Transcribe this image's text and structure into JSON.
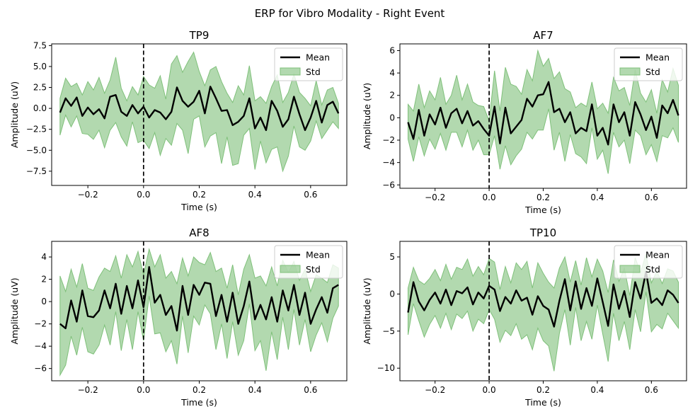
{
  "figure_title": "ERP for Vibro Modality - Right Event",
  "legend": {
    "mean_label": "Mean",
    "std_label": "Std",
    "placement": "upper right"
  },
  "colors": {
    "mean": "#000000",
    "std_fill": "#7fc07a",
    "event_line": "#000000"
  },
  "chart_data": [
    {
      "type": "line",
      "title": "TP9",
      "xlabel": "Time (s)",
      "ylabel": "Amplitude (uV)",
      "xlim": [
        -0.33,
        0.73
      ],
      "ylim": [
        -9.2,
        7.7
      ],
      "xticks": [
        -0.2,
        0.0,
        0.2,
        0.4,
        0.6
      ],
      "xtick_labels": [
        "−0.2",
        "0.0",
        "0.2",
        "0.4",
        "0.6"
      ],
      "yticks": [
        -7.5,
        -5.0,
        -2.5,
        0.0,
        2.5,
        5.0,
        7.5
      ],
      "ytick_labels": [
        "−7.5",
        "−5.0",
        "−2.5",
        "0.0",
        "2.5",
        "5.0",
        "7.5"
      ],
      "event_line_x": 0.0,
      "series": [
        {
          "name": "Mean",
          "x": [
            -0.3,
            -0.28,
            -0.26,
            -0.24,
            -0.22,
            -0.2,
            -0.18,
            -0.16,
            -0.14,
            -0.12,
            -0.1,
            -0.08,
            -0.06,
            -0.04,
            -0.02,
            0.0,
            0.02,
            0.04,
            0.06,
            0.08,
            0.1,
            0.12,
            0.14,
            0.16,
            0.18,
            0.2,
            0.22,
            0.24,
            0.26,
            0.28,
            0.3,
            0.32,
            0.34,
            0.36,
            0.38,
            0.4,
            0.42,
            0.44,
            0.46,
            0.48,
            0.5,
            0.52,
            0.54,
            0.56,
            0.58,
            0.6,
            0.62,
            0.64,
            0.66,
            0.68,
            0.7
          ],
          "y": [
            -0.5,
            1.2,
            0.3,
            1.3,
            -0.9,
            0.1,
            -0.7,
            -0.1,
            -1.2,
            1.4,
            1.6,
            -0.4,
            -0.9,
            0.4,
            -0.6,
            0.2,
            -1.1,
            -0.2,
            -0.5,
            -1.3,
            -0.4,
            2.5,
            0.9,
            0.2,
            0.8,
            2.1,
            -0.6,
            2.6,
            1.2,
            -0.3,
            -0.2,
            -2.0,
            -1.6,
            -0.9,
            1.2,
            -2.4,
            -1.1,
            -2.6,
            0.9,
            -0.3,
            -2.2,
            -1.3,
            1.4,
            -0.7,
            -2.6,
            -1.1,
            0.9,
            -1.7,
            0.4,
            0.8,
            -0.6
          ]
        },
        {
          "name": "Std",
          "upper": [
            1.2,
            3.6,
            2.6,
            3.0,
            1.6,
            3.2,
            2.2,
            3.7,
            1.8,
            3.4,
            6.1,
            2.4,
            0.9,
            2.6,
            1.6,
            3.8,
            2.8,
            2.4,
            3.9,
            1.1,
            5.3,
            6.3,
            4.3,
            5.6,
            6.7,
            4.4,
            2.7,
            4.6,
            5.0,
            3.2,
            1.8,
            0.7,
            2.7,
            1.6,
            5.1,
            0.9,
            1.4,
            0.6,
            2.6,
            4.0,
            0.7,
            1.9,
            4.1,
            1.9,
            1.2,
            0.3,
            3.3,
            0.4,
            2.2,
            2.5,
            0.6
          ],
          "lower": [
            -3.2,
            -0.8,
            -2.2,
            -0.9,
            -3.0,
            -3.1,
            -3.7,
            -2.6,
            -4.7,
            -2.6,
            -1.7,
            -3.4,
            -4.5,
            -1.6,
            -4.1,
            -3.8,
            -4.8,
            -2.9,
            -5.6,
            -3.6,
            -4.4,
            -1.8,
            -2.6,
            -5.4,
            -1.3,
            -0.9,
            -4.6,
            -3.3,
            -2.9,
            -6.6,
            -3.4,
            -6.8,
            -6.6,
            -3.2,
            -2.4,
            -7.3,
            -3.9,
            -6.5,
            -4.9,
            -4.6,
            -7.5,
            -5.7,
            -2.1,
            -4.6,
            -5.0,
            -3.9,
            -1.5,
            -3.6,
            -2.6,
            -1.6,
            -2.4
          ]
        }
      ]
    },
    {
      "type": "line",
      "title": "AF7",
      "xlabel": "Time (s)",
      "ylabel": "Amplitude (uV)",
      "xlim": [
        -0.33,
        0.73
      ],
      "ylim": [
        -6.3,
        6.6
      ],
      "xticks": [
        -0.2,
        0.0,
        0.2,
        0.4,
        0.6
      ],
      "xtick_labels": [
        "−0.2",
        "0.0",
        "0.2",
        "0.4",
        "0.6"
      ],
      "yticks": [
        -6,
        -4,
        -2,
        0,
        2,
        4,
        6
      ],
      "ytick_labels": [
        "−6",
        "−4",
        "−2",
        "0",
        "2",
        "4",
        "6"
      ],
      "event_line_x": 0.0,
      "series": [
        {
          "name": "Mean",
          "x": [
            -0.3,
            -0.28,
            -0.26,
            -0.24,
            -0.22,
            -0.2,
            -0.18,
            -0.16,
            -0.14,
            -0.12,
            -0.1,
            -0.08,
            -0.06,
            -0.04,
            -0.02,
            0.0,
            0.02,
            0.04,
            0.06,
            0.08,
            0.1,
            0.12,
            0.14,
            0.16,
            0.18,
            0.2,
            0.22,
            0.24,
            0.26,
            0.28,
            0.3,
            0.32,
            0.34,
            0.36,
            0.38,
            0.4,
            0.42,
            0.44,
            0.46,
            0.48,
            0.5,
            0.52,
            0.54,
            0.56,
            0.58,
            0.6,
            0.62,
            0.64,
            0.66,
            0.68,
            0.7
          ],
          "y": [
            -0.4,
            -1.9,
            0.7,
            -1.6,
            0.3,
            -0.6,
            0.9,
            -0.9,
            0.4,
            0.8,
            -0.5,
            0.6,
            -0.7,
            -0.3,
            -1.0,
            -1.6,
            1.0,
            -2.3,
            0.9,
            -1.4,
            -0.8,
            -0.2,
            1.7,
            1.0,
            2.0,
            2.1,
            3.2,
            0.5,
            0.8,
            -0.4,
            0.5,
            -1.4,
            -0.9,
            -1.2,
            1.2,
            -1.6,
            -0.9,
            -2.4,
            1.2,
            -0.4,
            0.5,
            -1.6,
            1.4,
            0.3,
            -1.1,
            0.1,
            -1.8,
            1.1,
            0.4,
            1.6,
            0.2
          ]
        },
        {
          "name": "Std",
          "upper": [
            1.2,
            0.6,
            3.0,
            0.9,
            2.4,
            1.6,
            3.6,
            1.2,
            2.0,
            3.8,
            1.6,
            3.0,
            1.4,
            1.1,
            1.0,
            -0.3,
            4.2,
            0.6,
            4.5,
            3.0,
            2.8,
            2.1,
            4.3,
            3.3,
            6.0,
            4.6,
            5.3,
            3.5,
            4.1,
            2.6,
            2.3,
            0.9,
            1.3,
            1.0,
            3.2,
            0.8,
            1.3,
            0.4,
            3.6,
            2.4,
            2.7,
            1.1,
            4.3,
            2.2,
            1.4,
            2.5,
            0.4,
            3.4,
            2.3,
            4.4,
            2.9
          ]
        },
        {
          "name": "Std-lower",
          "lower": [
            -1.9,
            -3.9,
            -1.7,
            -3.4,
            -1.9,
            -2.8,
            -1.4,
            -2.9,
            -1.3,
            -1.3,
            -2.6,
            -1.1,
            -2.9,
            -2.0,
            -3.3,
            -3.3,
            -1.6,
            -4.6,
            -2.5,
            -4.2,
            -3.4,
            -2.8,
            -1.3,
            -1.9,
            -1.1,
            -1.1,
            0.8,
            -2.9,
            -1.3,
            -3.9,
            -1.5,
            -3.2,
            -3.5,
            -4.1,
            -0.9,
            -3.7,
            -2.9,
            -5.0,
            -1.3,
            -2.6,
            -2.0,
            -4.1,
            -1.1,
            -1.6,
            -3.3,
            -2.4,
            -3.9,
            -1.6,
            -1.8,
            -0.9,
            -2.2
          ]
        }
      ]
    },
    {
      "type": "line",
      "title": "AF8",
      "xlabel": "Time (s)",
      "ylabel": "Amplitude (uV)",
      "xlim": [
        -0.33,
        0.73
      ],
      "ylim": [
        -7.1,
        5.4
      ],
      "xticks": [
        -0.2,
        0.0,
        0.2,
        0.4,
        0.6
      ],
      "xtick_labels": [
        "−0.2",
        "0.0",
        "0.2",
        "0.4",
        "0.6"
      ],
      "yticks": [
        -6,
        -4,
        -2,
        0,
        2,
        4
      ],
      "ytick_labels": [
        "−6",
        "−4",
        "−2",
        "0",
        "2",
        "4"
      ],
      "event_line_x": 0.0,
      "series": [
        {
          "name": "Mean",
          "x": [
            -0.3,
            -0.28,
            -0.26,
            -0.24,
            -0.22,
            -0.2,
            -0.18,
            -0.16,
            -0.14,
            -0.12,
            -0.1,
            -0.08,
            -0.06,
            -0.04,
            -0.02,
            0.0,
            0.02,
            0.04,
            0.06,
            0.08,
            0.1,
            0.12,
            0.14,
            0.16,
            0.18,
            0.2,
            0.22,
            0.24,
            0.26,
            0.28,
            0.3,
            0.32,
            0.34,
            0.36,
            0.38,
            0.4,
            0.42,
            0.44,
            0.46,
            0.48,
            0.5,
            0.52,
            0.54,
            0.56,
            0.58,
            0.6,
            0.62,
            0.64,
            0.66,
            0.68,
            0.7
          ],
          "y": [
            -2.0,
            -2.4,
            0.1,
            -1.8,
            1.0,
            -1.3,
            -1.4,
            -0.8,
            1.0,
            -0.6,
            1.6,
            -1.1,
            1.4,
            -0.6,
            1.9,
            -0.5,
            3.1,
            -0.1,
            0.6,
            -1.2,
            -0.4,
            -2.6,
            1.4,
            -1.2,
            1.5,
            0.6,
            1.7,
            1.6,
            -1.3,
            0.6,
            -1.8,
            0.8,
            -2.0,
            -0.4,
            1.8,
            -1.6,
            -0.3,
            -1.6,
            0.4,
            -1.8,
            1.0,
            -0.8,
            1.5,
            -1.2,
            0.8,
            -2.0,
            -0.7,
            0.4,
            -1.0,
            1.2,
            1.5
          ]
        },
        {
          "name": "Std",
          "upper": [
            2.3,
            0.9,
            2.9,
            1.3,
            3.4,
            1.2,
            1.0,
            2.2,
            3.0,
            2.7,
            4.1,
            2.1,
            4.2,
            3.1,
            4.5,
            2.4,
            4.7,
            3.1,
            4.2,
            2.1,
            2.7,
            1.6,
            3.9,
            2.3,
            4.0,
            3.5,
            3.3,
            4.4,
            2.7,
            3.0,
            1.2,
            3.3,
            0.6,
            2.9,
            4.2,
            2.1,
            2.3,
            1.4,
            3.1,
            1.4,
            3.7,
            2.6,
            3.6,
            1.9,
            2.9,
            0.9,
            2.4,
            2.1,
            1.7,
            3.3,
            3.0
          ]
        },
        {
          "name": "Std-lower",
          "lower": [
            -6.6,
            -5.7,
            -3.1,
            -4.8,
            -2.3,
            -4.5,
            -4.7,
            -3.9,
            -2.1,
            -3.9,
            -0.9,
            -4.4,
            -1.6,
            -4.3,
            -0.9,
            -3.5,
            0.5,
            -2.9,
            -2.8,
            -4.5,
            -3.5,
            -5.6,
            -1.3,
            -4.6,
            -1.3,
            -2.1,
            -0.3,
            -1.1,
            -4.3,
            -2.0,
            -5.1,
            -1.8,
            -4.8,
            -3.5,
            -0.2,
            -4.4,
            -3.5,
            -6.2,
            -2.7,
            -5.2,
            -1.4,
            -4.3,
            -0.7,
            -3.9,
            -1.6,
            -4.5,
            -3.0,
            -1.9,
            -3.6,
            -1.5,
            -0.4
          ]
        }
      ]
    },
    {
      "type": "line",
      "title": "TP10",
      "xlabel": "Time (s)",
      "ylabel": "Amplitude (uV)",
      "xlim": [
        -0.33,
        0.73
      ],
      "ylim": [
        -11.7,
        7.1
      ],
      "xticks": [
        -0.2,
        0.0,
        0.2,
        0.4,
        0.6
      ],
      "xtick_labels": [
        "−0.2",
        "0.0",
        "0.2",
        "0.4",
        "0.6"
      ],
      "yticks": [
        -10,
        -5,
        0,
        5
      ],
      "ytick_labels": [
        "−10",
        "−5",
        "0",
        "5"
      ],
      "event_line_x": 0.0,
      "series": [
        {
          "name": "Mean",
          "x": [
            -0.3,
            -0.28,
            -0.26,
            -0.24,
            -0.22,
            -0.2,
            -0.18,
            -0.16,
            -0.14,
            -0.12,
            -0.1,
            -0.08,
            -0.06,
            -0.04,
            -0.02,
            0.0,
            0.02,
            0.04,
            0.06,
            0.08,
            0.1,
            0.12,
            0.14,
            0.16,
            0.18,
            0.2,
            0.22,
            0.24,
            0.26,
            0.28,
            0.3,
            0.32,
            0.34,
            0.36,
            0.38,
            0.4,
            0.42,
            0.44,
            0.46,
            0.48,
            0.5,
            0.52,
            0.54,
            0.56,
            0.58,
            0.6,
            0.62,
            0.64,
            0.66,
            0.68,
            0.7
          ],
          "y": [
            -2.5,
            1.6,
            -1.0,
            -2.2,
            -0.8,
            0.2,
            -1.3,
            0.6,
            -1.5,
            0.4,
            0.1,
            0.9,
            -1.4,
            0.2,
            -0.6,
            1.1,
            0.6,
            -2.3,
            -0.4,
            -1.3,
            0.5,
            -0.9,
            -0.5,
            -2.8,
            -0.3,
            -1.6,
            -2.1,
            -4.4,
            -0.9,
            2.0,
            -2.2,
            1.7,
            -2.0,
            0.8,
            -1.6,
            2.1,
            -1.1,
            -4.3,
            1.3,
            -2.0,
            0.4,
            -3.1,
            1.6,
            -0.6,
            3.0,
            -1.2,
            -0.6,
            -1.5,
            0.5,
            -0.1,
            -1.2
          ]
        },
        {
          "name": "Std",
          "upper": [
            0.8,
            3.6,
            1.8,
            1.3,
            2.1,
            3.3,
            1.8,
            4.0,
            2.0,
            3.6,
            3.3,
            4.7,
            2.4,
            3.7,
            2.6,
            4.8,
            4.3,
            0.6,
            3.7,
            1.5,
            4.2,
            3.3,
            4.4,
            0.8,
            4.2,
            2.8,
            1.6,
            0.8,
            3.5,
            5.0,
            1.6,
            4.5,
            1.2,
            4.9,
            2.3,
            4.7,
            3.1,
            0.2,
            4.6,
            1.7,
            3.5,
            -0.2,
            4.9,
            2.9,
            5.4,
            1.5,
            3.1,
            1.4,
            3.4,
            3.1,
            1.6
          ]
        },
        {
          "name": "Std-lower",
          "lower": [
            -5.5,
            -1.3,
            -3.6,
            -5.8,
            -4.1,
            -2.9,
            -4.6,
            -2.6,
            -4.8,
            -2.7,
            -3.3,
            -2.3,
            -5.0,
            -3.4,
            -4.0,
            -2.1,
            -3.4,
            -6.5,
            -4.9,
            -5.6,
            -4.0,
            -6.1,
            -5.5,
            -7.5,
            -4.6,
            -6.3,
            -7.0,
            -10.4,
            -5.3,
            -2.1,
            -6.9,
            -1.8,
            -6.3,
            -3.7,
            -6.1,
            -1.5,
            -5.4,
            -9.1,
            -2.6,
            -6.3,
            -3.7,
            -7.5,
            -2.1,
            -5.1,
            0.3,
            -5.1,
            -4.1,
            -4.7,
            -2.6,
            -3.6,
            -4.6
          ]
        }
      ]
    }
  ]
}
